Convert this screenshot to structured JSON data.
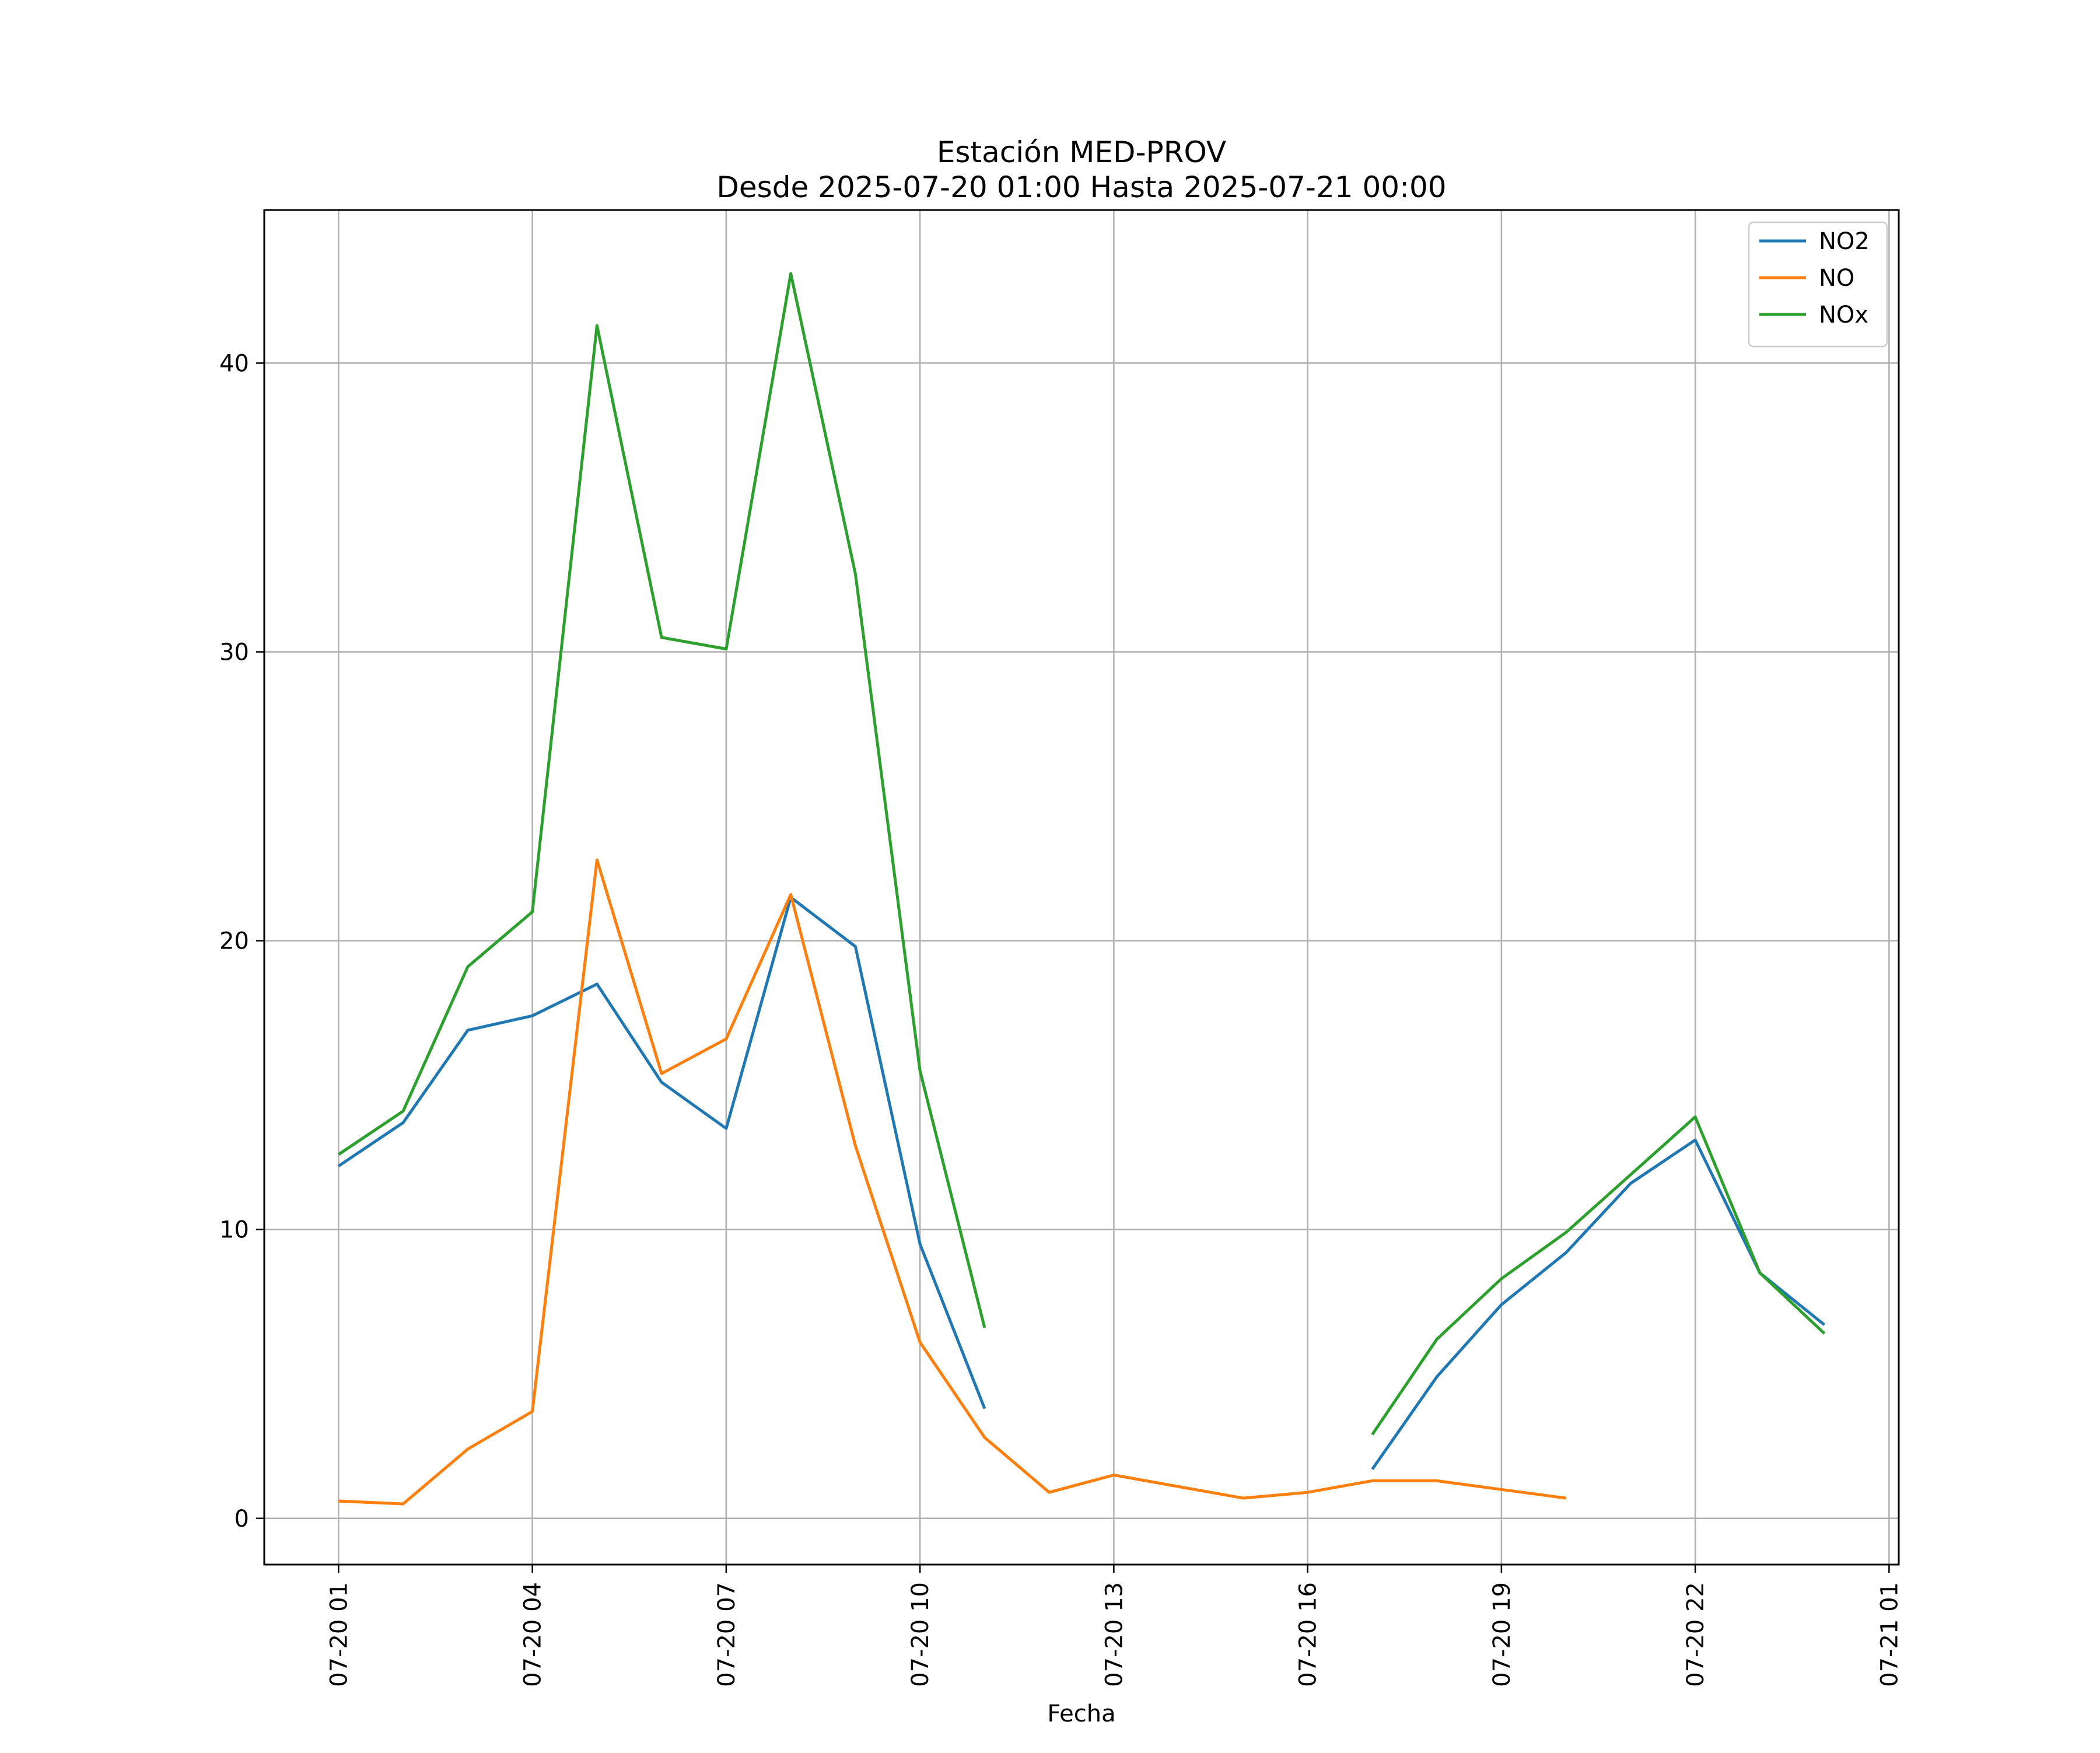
{
  "chart_data": {
    "type": "line",
    "title": "Estación MED-PROV",
    "subtitle": "Desde 2025-07-20 01:00 Hasta 2025-07-21 00:00",
    "xlabel": "Fecha",
    "ylabel": "",
    "x_hours": [
      1,
      2,
      3,
      4,
      5,
      6,
      7,
      8,
      9,
      10,
      11,
      12,
      13,
      14,
      15,
      16,
      17,
      18,
      19,
      20,
      21,
      22,
      23,
      24
    ],
    "x_ticks": [
      {
        "hour": 1,
        "label": "07-20 01"
      },
      {
        "hour": 4,
        "label": "07-20 04"
      },
      {
        "hour": 7,
        "label": "07-20 07"
      },
      {
        "hour": 10,
        "label": "07-20 10"
      },
      {
        "hour": 13,
        "label": "07-20 13"
      },
      {
        "hour": 16,
        "label": "07-20 16"
      },
      {
        "hour": 19,
        "label": "07-20 19"
      },
      {
        "hour": 22,
        "label": "07-20 22"
      },
      {
        "hour": 25,
        "label": "07-21 01"
      }
    ],
    "xlim_hours": [
      -0.15,
      25.15
    ],
    "ylim": [
      -1.6,
      45.3
    ],
    "y_ticks": [
      0,
      10,
      20,
      30,
      40
    ],
    "grid": true,
    "legend_position": "top-right",
    "series": [
      {
        "name": "NO2",
        "color": "#1f77b4",
        "values": [
          12.2,
          13.7,
          16.9,
          17.4,
          18.5,
          15.1,
          13.5,
          21.5,
          19.8,
          9.5,
          3.8,
          null,
          null,
          null,
          null,
          null,
          1.7,
          4.9,
          7.4,
          9.2,
          11.6,
          13.1,
          8.5,
          6.7
        ]
      },
      {
        "name": "NO",
        "color": "#ff7f0e",
        "values": [
          0.6,
          0.5,
          2.4,
          3.7,
          22.8,
          15.4,
          16.6,
          21.6,
          12.9,
          6.1,
          2.8,
          0.9,
          1.5,
          1.1,
          0.7,
          0.9,
          1.3,
          1.3,
          1.0,
          0.7,
          null,
          null,
          null,
          null
        ]
      },
      {
        "name": "NOx",
        "color": "#2ca02c",
        "values": [
          12.6,
          14.1,
          19.1,
          21.0,
          41.3,
          30.5,
          30.1,
          43.1,
          32.7,
          15.5,
          6.6,
          null,
          null,
          null,
          null,
          null,
          2.9,
          6.2,
          8.3,
          9.9,
          11.9,
          13.9,
          8.5,
          6.4
        ]
      }
    ]
  }
}
